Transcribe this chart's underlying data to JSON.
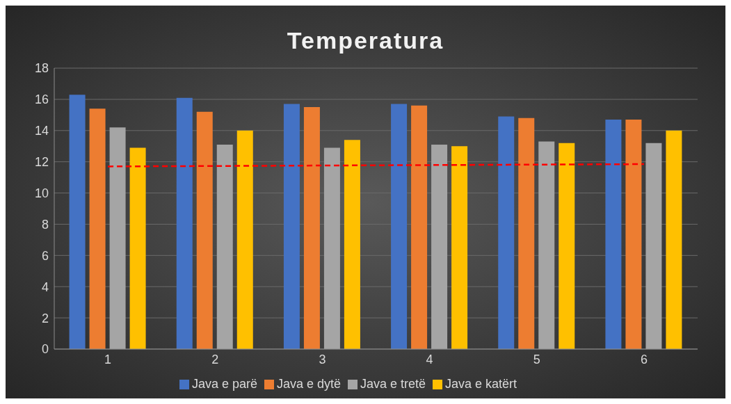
{
  "chart_data": {
    "type": "bar",
    "title": "Temperatura",
    "categories": [
      "1",
      "2",
      "3",
      "4",
      "5",
      "6"
    ],
    "series": [
      {
        "name": "Java e parë",
        "color": "#4472c4",
        "values": [
          16.3,
          16.1,
          15.7,
          15.7,
          14.9,
          14.7
        ]
      },
      {
        "name": "Java e dytë",
        "color": "#ed7d31",
        "values": [
          15.4,
          15.2,
          15.5,
          15.6,
          14.8,
          14.7
        ]
      },
      {
        "name": "Java e tretë",
        "color": "#a5a5a5",
        "values": [
          14.2,
          13.1,
          12.9,
          13.1,
          13.3,
          13.2
        ]
      },
      {
        "name": "Java e katërt",
        "color": "#ffc000",
        "values": [
          12.9,
          14.0,
          13.4,
          13.0,
          13.2,
          14.0
        ]
      },
      {
        "type": "line",
        "color": "#ff0000",
        "line_style": "dashed",
        "marker": "none",
        "values": [
          11.7,
          11.73,
          11.76,
          11.79,
          11.82,
          11.85
        ]
      }
    ],
    "ylim": [
      0,
      18
    ],
    "yticks": [
      0,
      2,
      4,
      6,
      8,
      10,
      12,
      14,
      16,
      18
    ],
    "grid": "y",
    "legend": "bottom"
  }
}
